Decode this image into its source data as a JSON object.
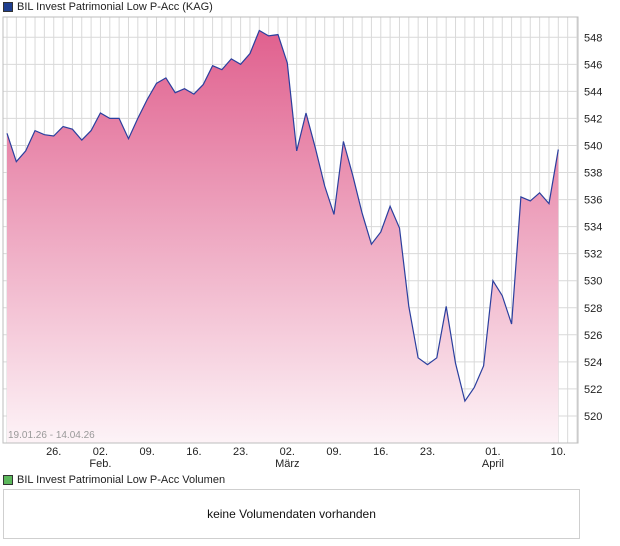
{
  "price_legend": {
    "label": "BIL Invest Patrimonial Low P-Acc (KAG)",
    "color": "#1f3f8f"
  },
  "volume_legend": {
    "label": "BIL Invest Patrimonial Low P-Acc Volumen",
    "color": "#5cb85c"
  },
  "volume_message": "keine Volumendaten vorhanden",
  "colors": {
    "line": "#2b3f9e",
    "fill_top": "#e0608e",
    "fill_bottom": "#fdf3f7",
    "grid": "#d9d9d9"
  },
  "chart_data": {
    "type": "area",
    "title": "BIL Invest Patrimonial Low P-Acc (KAG)",
    "date_range_label": "19.01.26 - 14.04.26",
    "x_start": "2026-01-19",
    "x_end": "2026-04-14",
    "ylim": [
      518,
      549.5
    ],
    "y_ticks": [
      520,
      522,
      524,
      526,
      528,
      530,
      532,
      534,
      536,
      538,
      540,
      542,
      544,
      546,
      548
    ],
    "grid": true,
    "x_ticks": [
      {
        "date": "2026-01-26",
        "label": "26.",
        "sublabel": ""
      },
      {
        "date": "2026-02-02",
        "label": "02.",
        "sublabel": "Feb."
      },
      {
        "date": "2026-02-09",
        "label": "09.",
        "sublabel": ""
      },
      {
        "date": "2026-02-16",
        "label": "16.",
        "sublabel": ""
      },
      {
        "date": "2026-02-23",
        "label": "23.",
        "sublabel": ""
      },
      {
        "date": "2026-03-02",
        "label": "02.",
        "sublabel": "März"
      },
      {
        "date": "2026-03-09",
        "label": "09.",
        "sublabel": ""
      },
      {
        "date": "2026-03-16",
        "label": "16.",
        "sublabel": ""
      },
      {
        "date": "2026-03-23",
        "label": "23.",
        "sublabel": ""
      },
      {
        "date": "2026-04-01",
        "label": "01.",
        "sublabel": "April"
      },
      {
        "date": "2026-04-10",
        "label": "10.",
        "sublabel": ""
      }
    ],
    "series": [
      {
        "values": [
          [
            "2026-01-19",
            540.9
          ],
          [
            "2026-01-20",
            538.8
          ],
          [
            "2026-01-21",
            539.6
          ],
          [
            "2026-01-22",
            541.1
          ],
          [
            "2026-01-23",
            540.8
          ],
          [
            "2026-01-26",
            540.7
          ],
          [
            "2026-01-27",
            541.4
          ],
          [
            "2026-01-28",
            541.2
          ],
          [
            "2026-01-29",
            540.4
          ],
          [
            "2026-01-30",
            541.1
          ],
          [
            "2026-02-02",
            542.4
          ],
          [
            "2026-02-03",
            542.0
          ],
          [
            "2026-02-04",
            542.0
          ],
          [
            "2026-02-05",
            540.5
          ],
          [
            "2026-02-06",
            542.0
          ],
          [
            "2026-02-09",
            543.4
          ],
          [
            "2026-02-10",
            544.6
          ],
          [
            "2026-02-11",
            545.0
          ],
          [
            "2026-02-12",
            543.9
          ],
          [
            "2026-02-13",
            544.2
          ],
          [
            "2026-02-16",
            543.8
          ],
          [
            "2026-02-17",
            544.5
          ],
          [
            "2026-02-18",
            545.9
          ],
          [
            "2026-02-19",
            545.6
          ],
          [
            "2026-02-20",
            546.4
          ],
          [
            "2026-02-23",
            546.0
          ],
          [
            "2026-02-24",
            546.8
          ],
          [
            "2026-02-25",
            548.5
          ],
          [
            "2026-02-26",
            548.1
          ],
          [
            "2026-02-27",
            548.2
          ],
          [
            "2026-03-02",
            546.1
          ],
          [
            "2026-03-03",
            539.6
          ],
          [
            "2026-03-04",
            542.4
          ],
          [
            "2026-03-05",
            539.8
          ],
          [
            "2026-03-06",
            537.0
          ],
          [
            "2026-03-09",
            534.9
          ],
          [
            "2026-03-10",
            540.3
          ],
          [
            "2026-03-11",
            537.8
          ],
          [
            "2026-03-12",
            535.0
          ],
          [
            "2026-03-13",
            532.7
          ],
          [
            "2026-03-16",
            533.6
          ],
          [
            "2026-03-17",
            535.5
          ],
          [
            "2026-03-18",
            533.9
          ],
          [
            "2026-03-19",
            528.1
          ],
          [
            "2026-03-20",
            524.3
          ],
          [
            "2026-03-23",
            523.8
          ],
          [
            "2026-03-24",
            524.3
          ],
          [
            "2026-03-25",
            528.1
          ],
          [
            "2026-03-26",
            523.9
          ],
          [
            "2026-03-27",
            521.1
          ],
          [
            "2026-03-30",
            522.1
          ],
          [
            "2026-03-31",
            523.7
          ],
          [
            "2026-04-01",
            530.0
          ],
          [
            "2026-04-02",
            528.9
          ],
          [
            "2026-04-03",
            526.8
          ],
          [
            "2026-04-06",
            536.2
          ],
          [
            "2026-04-07",
            535.9
          ],
          [
            "2026-04-08",
            536.5
          ],
          [
            "2026-04-09",
            535.7
          ],
          [
            "2026-04-10",
            539.7
          ]
        ]
      }
    ]
  }
}
